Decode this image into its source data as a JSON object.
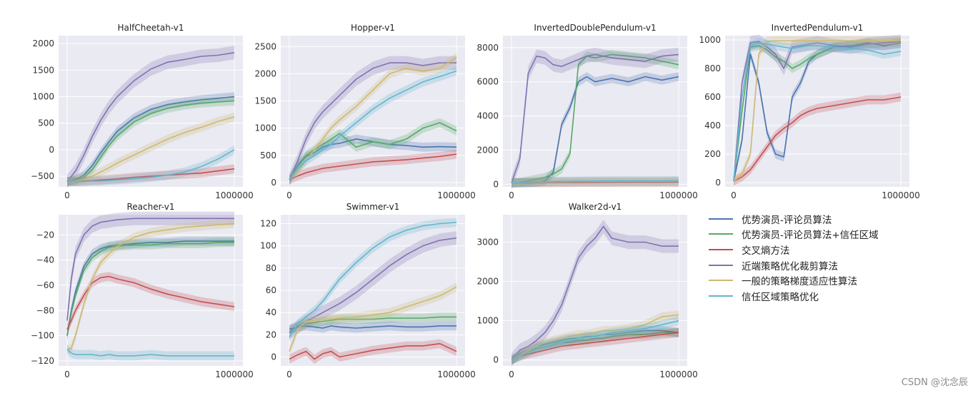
{
  "legend": [
    {
      "label": "优势演员-评论员算法",
      "color": "#4c72b0"
    },
    {
      "label": "优势演员-评论员算法+信任区域",
      "color": "#55a868"
    },
    {
      "label": "交叉熵方法",
      "color": "#c44e52"
    },
    {
      "label": "近端策略优化裁剪算法",
      "color": "#8172b2"
    },
    {
      "label": "一般的策略梯度适应性算法",
      "color": "#ccb974"
    },
    {
      "label": "信任区域策略优化",
      "color": "#64b5cd"
    }
  ],
  "watermark": "CSDN @沈念辰",
  "chart_data": [
    {
      "type": "line",
      "title": "HalfCheetah-v1",
      "xlim": [
        0,
        1000000
      ],
      "ylim": [
        -700,
        2150
      ],
      "xticks": [
        "0",
        "1000000"
      ],
      "yticks": [
        -500,
        0,
        500,
        1000,
        1500,
        2000
      ],
      "x": [
        0,
        50000,
        100000,
        150000,
        200000,
        250000,
        300000,
        400000,
        500000,
        600000,
        700000,
        800000,
        900000,
        1000000
      ],
      "series": [
        {
          "name": "优势演员-评论员算法",
          "values": [
            -600,
            -560,
            -480,
            -300,
            -60,
            150,
            350,
            600,
            760,
            850,
            900,
            940,
            970,
            1000
          ]
        },
        {
          "name": "优势演员-评论员算法+信任区域",
          "values": [
            -600,
            -580,
            -520,
            -380,
            -150,
            80,
            260,
            520,
            680,
            780,
            840,
            880,
            900,
            920
          ]
        },
        {
          "name": "交叉熵方法",
          "values": [
            -600,
            -600,
            -590,
            -580,
            -570,
            -560,
            -550,
            -520,
            -500,
            -480,
            -460,
            -440,
            -400,
            -360
          ]
        },
        {
          "name": "近端策略优化裁剪算法",
          "values": [
            -600,
            -400,
            -100,
            250,
            550,
            800,
            1000,
            1300,
            1520,
            1650,
            1700,
            1760,
            1780,
            1830
          ]
        },
        {
          "name": "一般的策略梯度适应性算法",
          "values": [
            -600,
            -590,
            -560,
            -500,
            -420,
            -340,
            -250,
            -100,
            50,
            200,
            320,
            420,
            530,
            620
          ]
        },
        {
          "name": "信任区域策略优化",
          "values": [
            -600,
            -600,
            -600,
            -590,
            -590,
            -580,
            -570,
            -550,
            -520,
            -480,
            -420,
            -320,
            -180,
            0
          ]
        }
      ]
    },
    {
      "type": "line",
      "title": "Hopper-v1",
      "xlim": [
        0,
        1000000
      ],
      "ylim": [
        -80,
        2700
      ],
      "xticks": [
        "0",
        "1000000"
      ],
      "yticks": [
        0,
        500,
        1000,
        1500,
        2000,
        2500
      ],
      "x": [
        0,
        50000,
        100000,
        150000,
        200000,
        250000,
        300000,
        400000,
        500000,
        600000,
        700000,
        800000,
        900000,
        1000000
      ],
      "series": [
        {
          "name": "优势演员-评论员算法",
          "values": [
            50,
            300,
            480,
            550,
            650,
            700,
            720,
            800,
            750,
            700,
            680,
            650,
            660,
            650
          ]
        },
        {
          "name": "优势演员-评论员算法+信任区域",
          "values": [
            50,
            320,
            500,
            600,
            700,
            800,
            900,
            650,
            750,
            700,
            800,
            1000,
            1100,
            950
          ]
        },
        {
          "name": "交叉熵方法",
          "values": [
            50,
            120,
            180,
            220,
            260,
            280,
            300,
            340,
            380,
            400,
            420,
            450,
            480,
            520
          ]
        },
        {
          "name": "近端策略优化裁剪算法",
          "values": [
            50,
            400,
            800,
            1100,
            1300,
            1450,
            1600,
            1900,
            2100,
            2200,
            2200,
            2150,
            2200,
            2200
          ]
        },
        {
          "name": "一般的策略梯度适应性算法",
          "values": [
            50,
            200,
            400,
            600,
            800,
            1000,
            1150,
            1400,
            1700,
            2000,
            2100,
            2050,
            2100,
            2300
          ]
        },
        {
          "name": "信任区域策略优化",
          "values": [
            50,
            250,
            400,
            500,
            600,
            700,
            850,
            1100,
            1350,
            1550,
            1700,
            1850,
            1950,
            2050
          ]
        }
      ]
    },
    {
      "type": "line",
      "title": "InvertedDoublePendulum-v1",
      "xlim": [
        0,
        1000000
      ],
      "ylim": [
        -150,
        8700
      ],
      "xticks": [
        "0",
        "1000000"
      ],
      "yticks": [
        0,
        2000,
        4000,
        6000,
        8000
      ],
      "x": [
        0,
        50000,
        100000,
        150000,
        200000,
        250000,
        300000,
        350000,
        400000,
        450000,
        500000,
        600000,
        700000,
        800000,
        900000,
        1000000
      ],
      "series": [
        {
          "name": "优势演员-评论员算法",
          "values": [
            80,
            90,
            100,
            120,
            200,
            700,
            3500,
            4500,
            6000,
            6300,
            6000,
            6200,
            6000,
            6300,
            6100,
            6300
          ]
        },
        {
          "name": "优势演员-评论员算法+信任区域",
          "values": [
            80,
            120,
            200,
            300,
            400,
            600,
            900,
            1800,
            7000,
            7500,
            7400,
            7600,
            7500,
            7400,
            7200,
            7000
          ]
        },
        {
          "name": "交叉熵方法",
          "values": [
            80,
            90,
            90,
            100,
            100,
            100,
            110,
            110,
            110,
            115,
            115,
            120,
            120,
            125,
            125,
            130
          ]
        },
        {
          "name": "近端策略优化裁剪算法",
          "values": [
            80,
            1500,
            6500,
            7500,
            7400,
            7000,
            6900,
            7100,
            7300,
            7500,
            7600,
            7400,
            7300,
            7200,
            7500,
            7600
          ]
        },
        {
          "name": "一般的策略梯度适应性算法",
          "values": [
            80,
            100,
            120,
            130,
            140,
            150,
            160,
            160,
            170,
            170,
            170,
            175,
            180,
            180,
            185,
            190
          ]
        },
        {
          "name": "信任区域策略优化",
          "values": [
            80,
            110,
            130,
            150,
            160,
            170,
            180,
            180,
            190,
            190,
            195,
            200,
            200,
            200,
            205,
            210
          ]
        }
      ]
    },
    {
      "type": "line",
      "title": "InvertedPendulum-v1",
      "xlim": [
        0,
        1000000
      ],
      "ylim": [
        -30,
        1030
      ],
      "xticks": [
        "0",
        "1000000"
      ],
      "yticks": [
        0,
        200,
        400,
        600,
        800,
        1000
      ],
      "x": [
        0,
        50000,
        100000,
        150000,
        200000,
        250000,
        300000,
        350000,
        400000,
        450000,
        500000,
        600000,
        700000,
        800000,
        900000,
        1000000
      ],
      "series": [
        {
          "name": "优势演员-评论员算法",
          "values": [
            10,
            300,
            900,
            700,
            350,
            200,
            180,
            600,
            700,
            850,
            900,
            950,
            960,
            980,
            960,
            980
          ]
        },
        {
          "name": "优势演员-评论员算法+信任区域",
          "values": [
            10,
            500,
            950,
            960,
            930,
            880,
            850,
            800,
            830,
            870,
            900,
            950,
            960,
            970,
            980,
            990
          ]
        },
        {
          "name": "交叉熵方法",
          "values": [
            10,
            40,
            90,
            170,
            250,
            330,
            380,
            420,
            470,
            500,
            520,
            540,
            560,
            580,
            580,
            600
          ]
        },
        {
          "name": "近端策略优化裁剪算法",
          "values": [
            10,
            700,
            980,
            990,
            950,
            900,
            800,
            950,
            960,
            970,
            980,
            960,
            950,
            970,
            980,
            990
          ]
        },
        {
          "name": "一般的策略梯度适应性算法",
          "values": [
            10,
            60,
            200,
            900,
            990,
            995,
            995,
            995,
            995,
            995,
            995,
            995,
            995,
            995,
            995,
            995
          ]
        },
        {
          "name": "信任区域策略优化",
          "values": [
            10,
            600,
            960,
            980,
            970,
            960,
            950,
            940,
            950,
            960,
            960,
            950,
            940,
            930,
            900,
            920
          ]
        }
      ]
    },
    {
      "type": "line",
      "title": "Reacher-v1",
      "xlim": [
        0,
        1000000
      ],
      "ylim": [
        -124,
        -4
      ],
      "xticks": [
        "0",
        "1000000"
      ],
      "yticks": [
        -120,
        -100,
        -80,
        -60,
        -40,
        -20
      ],
      "x": [
        0,
        25000,
        50000,
        100000,
        150000,
        200000,
        250000,
        300000,
        400000,
        500000,
        600000,
        700000,
        800000,
        900000,
        1000000
      ],
      "series": [
        {
          "name": "优势演员-评论员算法",
          "values": [
            -100,
            -80,
            -65,
            -45,
            -35,
            -31,
            -29,
            -28,
            -27,
            -26,
            -26,
            -25,
            -25,
            -25,
            -25
          ]
        },
        {
          "name": "优势演员-评论员算法+信任区域",
          "values": [
            -100,
            -82,
            -68,
            -48,
            -38,
            -33,
            -30,
            -29,
            -28,
            -28,
            -27,
            -27,
            -27,
            -26,
            -26
          ]
        },
        {
          "name": "交叉熵方法",
          "values": [
            -95,
            -88,
            -80,
            -68,
            -58,
            -54,
            -53,
            -55,
            -58,
            -63,
            -67,
            -70,
            -73,
            -75,
            -77
          ]
        },
        {
          "name": "近端策略优化裁剪算法",
          "values": [
            -88,
            -55,
            -35,
            -20,
            -13,
            -10,
            -9,
            -8,
            -7,
            -7,
            -7,
            -7,
            -7,
            -7,
            -7
          ]
        },
        {
          "name": "一般的策略梯度适应性算法",
          "values": [
            -111,
            -110,
            -100,
            -75,
            -55,
            -42,
            -35,
            -29,
            -22,
            -18,
            -16,
            -14,
            -13,
            -12,
            -11
          ]
        },
        {
          "name": "信任区域策略优化",
          "values": [
            -111,
            -114,
            -115,
            -115,
            -115,
            -116,
            -115,
            -116,
            -116,
            -115,
            -116,
            -116,
            -116,
            -116,
            -116
          ]
        }
      ]
    },
    {
      "type": "line",
      "title": "Swimmer-v1",
      "xlim": [
        0,
        1000000
      ],
      "ylim": [
        -8,
        128
      ],
      "xticks": [
        "0",
        "1000000"
      ],
      "yticks": [
        0,
        20,
        40,
        60,
        80,
        100,
        120
      ],
      "x": [
        0,
        50000,
        100000,
        150000,
        200000,
        250000,
        300000,
        400000,
        500000,
        600000,
        700000,
        800000,
        900000,
        1000000
      ],
      "series": [
        {
          "name": "优势演员-评论员算法",
          "values": [
            25,
            27,
            28,
            27,
            26,
            28,
            27,
            26,
            27,
            28,
            27,
            27,
            28,
            28
          ]
        },
        {
          "name": "优势演员-评论员算法+信任区域",
          "values": [
            22,
            28,
            30,
            31,
            32,
            33,
            34,
            34,
            34,
            35,
            35,
            35,
            36,
            36
          ]
        },
        {
          "name": "交叉熵方法",
          "values": [
            -2,
            2,
            5,
            -2,
            3,
            5,
            0,
            3,
            6,
            8,
            10,
            10,
            12,
            5
          ]
        },
        {
          "name": "近端策略优化裁剪算法",
          "values": [
            22,
            27,
            32,
            36,
            40,
            44,
            48,
            58,
            70,
            82,
            92,
            100,
            105,
            107
          ]
        },
        {
          "name": "一般的策略梯度适应性算法",
          "values": [
            5,
            25,
            32,
            33,
            34,
            34,
            35,
            36,
            38,
            40,
            45,
            50,
            55,
            63
          ]
        },
        {
          "name": "信任区域策略优化",
          "values": [
            18,
            30,
            36,
            42,
            50,
            60,
            70,
            85,
            98,
            108,
            114,
            118,
            120,
            121
          ]
        }
      ]
    },
    {
      "type": "line",
      "title": "Walker2d-v1",
      "xlim": [
        0,
        1000000
      ],
      "ylim": [
        -150,
        3700
      ],
      "xticks": [
        "0",
        "1000000"
      ],
      "yticks": [
        0,
        1000,
        2000,
        3000
      ],
      "x": [
        0,
        50000,
        100000,
        150000,
        200000,
        250000,
        300000,
        350000,
        400000,
        450000,
        500000,
        550000,
        600000,
        700000,
        800000,
        900000,
        1000000
      ],
      "series": [
        {
          "name": "优势演员-评论员算法",
          "values": [
            0,
            150,
            250,
            350,
            400,
            450,
            500,
            550,
            550,
            600,
            600,
            650,
            650,
            700,
            750,
            750,
            700
          ]
        },
        {
          "name": "优势演员-评论员算法+信任区域",
          "values": [
            0,
            100,
            200,
            300,
            350,
            400,
            450,
            450,
            500,
            500,
            550,
            550,
            600,
            650,
            650,
            700,
            700
          ]
        },
        {
          "name": "交叉熵方法",
          "values": [
            0,
            100,
            150,
            200,
            250,
            300,
            350,
            380,
            400,
            430,
            450,
            480,
            500,
            550,
            600,
            650,
            700
          ]
        },
        {
          "name": "近端策略优化裁剪算法",
          "values": [
            0,
            250,
            350,
            500,
            700,
            1000,
            1400,
            2000,
            2600,
            2900,
            3100,
            3400,
            3100,
            3000,
            3000,
            2900,
            2900
          ]
        },
        {
          "name": "一般的策略梯度适应性算法",
          "values": [
            0,
            120,
            250,
            350,
            450,
            500,
            550,
            600,
            650,
            650,
            700,
            750,
            750,
            800,
            900,
            1100,
            1150
          ]
        },
        {
          "name": "信任区域策略优化",
          "values": [
            0,
            100,
            200,
            280,
            350,
            400,
            450,
            500,
            550,
            580,
            600,
            650,
            700,
            750,
            800,
            900,
            1000
          ]
        }
      ]
    }
  ]
}
